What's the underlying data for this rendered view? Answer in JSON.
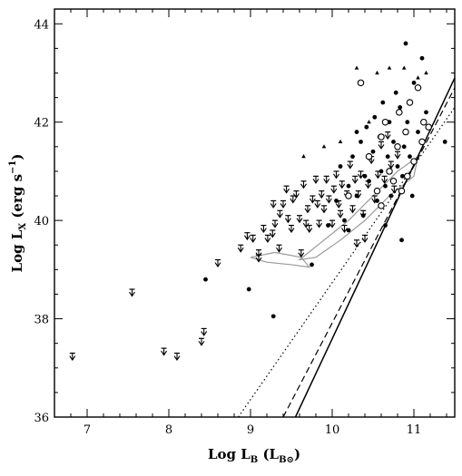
{
  "chart_data": {
    "type": "scatter",
    "title": "",
    "xlabel": {
      "main": "Log L",
      "sub": "B",
      "unit_open": " (L",
      "unit_sub": "B⊙",
      "unit_close": ")"
    },
    "ylabel": {
      "main": "Log L",
      "sub": "X",
      "unit_open": " (erg s",
      "unit_sup": "−1",
      "unit_close": ")"
    },
    "xlim": [
      6.6,
      11.5
    ],
    "ylim": [
      36,
      44.3
    ],
    "x_ticks": [
      7,
      8,
      9,
      10,
      11
    ],
    "x_tick_labels": [
      "7",
      "8",
      "9",
      "10",
      "11"
    ],
    "y_ticks": [
      36,
      38,
      40,
      42,
      44
    ],
    "y_tick_labels": [
      "36",
      "38",
      "40",
      "42",
      "44"
    ],
    "grid": false,
    "legend": "none",
    "colors": {
      "axes": "#000000",
      "points": "#000000",
      "contour": "#9a9a9a"
    },
    "series": [
      {
        "marker": "upper-limit-arrow",
        "points": [
          [
            6.82,
            37.3
          ],
          [
            7.55,
            38.6
          ],
          [
            7.94,
            37.4
          ],
          [
            8.1,
            37.3
          ],
          [
            8.4,
            37.6
          ],
          [
            8.43,
            37.8
          ],
          [
            8.6,
            39.2
          ],
          [
            8.88,
            39.5
          ],
          [
            8.96,
            39.75
          ],
          [
            9.03,
            39.7
          ],
          [
            9.1,
            39.3
          ],
          [
            9.16,
            39.9
          ],
          [
            9.21,
            39.7
          ],
          [
            9.28,
            40.4
          ],
          [
            9.3,
            40.0
          ],
          [
            9.35,
            39.5
          ],
          [
            9.4,
            40.4
          ],
          [
            9.44,
            40.7
          ],
          [
            9.46,
            40.1
          ],
          [
            9.5,
            39.9
          ],
          [
            9.56,
            40.6
          ],
          [
            9.6,
            40.1
          ],
          [
            9.62,
            39.4
          ],
          [
            9.65,
            40.8
          ],
          [
            9.7,
            40.3
          ],
          [
            9.72,
            39.9
          ],
          [
            9.76,
            40.5
          ],
          [
            9.8,
            40.9
          ],
          [
            9.84,
            40.0
          ],
          [
            9.87,
            40.6
          ],
          [
            9.9,
            40.3
          ],
          [
            9.93,
            40.9
          ],
          [
            9.96,
            40.5
          ],
          [
            10.0,
            40.0
          ],
          [
            10.02,
            40.7
          ],
          [
            10.05,
            41.0
          ],
          [
            10.08,
            40.4
          ],
          [
            10.12,
            40.8
          ],
          [
            10.15,
            39.9
          ],
          [
            10.18,
            40.6
          ],
          [
            10.22,
            41.2
          ],
          [
            10.25,
            40.3
          ],
          [
            10.28,
            40.9
          ],
          [
            10.32,
            40.6
          ],
          [
            10.35,
            41.0
          ],
          [
            10.38,
            40.2
          ],
          [
            10.4,
            39.7
          ],
          [
            10.44,
            40.8
          ],
          [
            10.48,
            41.3
          ],
          [
            10.52,
            40.5
          ],
          [
            10.56,
            41.0
          ],
          [
            10.6,
            41.6
          ],
          [
            10.64,
            40.9
          ],
          [
            10.68,
            41.8
          ],
          [
            10.72,
            41.2
          ],
          [
            10.76,
            40.7
          ],
          [
            10.8,
            41.4
          ],
          [
            9.36,
            40.2
          ],
          [
            9.52,
            40.5
          ],
          [
            9.68,
            40.0
          ],
          [
            9.82,
            40.4
          ],
          [
            10.1,
            40.2
          ],
          [
            10.3,
            39.6
          ],
          [
            9.1,
            39.4
          ],
          [
            9.27,
            39.8
          ]
        ]
      },
      {
        "marker": "filled-circle",
        "points": [
          [
            8.45,
            38.8
          ],
          [
            8.98,
            38.6
          ],
          [
            9.28,
            38.05
          ],
          [
            9.75,
            39.1
          ],
          [
            9.95,
            39.9
          ],
          [
            10.05,
            40.4
          ],
          [
            10.1,
            41.1
          ],
          [
            10.15,
            40.0
          ],
          [
            10.2,
            40.7
          ],
          [
            10.25,
            41.3
          ],
          [
            10.3,
            40.5
          ],
          [
            10.35,
            41.6
          ],
          [
            10.38,
            40.1
          ],
          [
            10.42,
            41.9
          ],
          [
            10.45,
            40.8
          ],
          [
            10.5,
            41.4
          ],
          [
            10.52,
            42.1
          ],
          [
            10.55,
            40.4
          ],
          [
            10.58,
            41.7
          ],
          [
            10.6,
            41.0
          ],
          [
            10.62,
            42.4
          ],
          [
            10.65,
            40.7
          ],
          [
            10.68,
            41.3
          ],
          [
            10.7,
            42.0
          ],
          [
            10.72,
            40.5
          ],
          [
            10.75,
            41.6
          ],
          [
            10.78,
            42.6
          ],
          [
            10.8,
            41.1
          ],
          [
            10.83,
            42.3
          ],
          [
            10.86,
            40.9
          ],
          [
            10.88,
            41.5
          ],
          [
            10.9,
            43.6
          ],
          [
            10.92,
            42.0
          ],
          [
            10.95,
            41.3
          ],
          [
            10.98,
            40.5
          ],
          [
            11.0,
            42.8
          ],
          [
            11.05,
            41.8
          ],
          [
            11.1,
            43.3
          ],
          [
            11.15,
            42.2
          ],
          [
            11.38,
            41.6
          ],
          [
            10.4,
            40.9
          ],
          [
            10.3,
            41.8
          ],
          [
            10.2,
            39.8
          ],
          [
            10.65,
            39.9
          ],
          [
            10.85,
            39.6
          ]
        ]
      },
      {
        "marker": "open-circle",
        "points": [
          [
            10.35,
            42.8
          ],
          [
            10.45,
            41.3
          ],
          [
            10.55,
            40.6
          ],
          [
            10.6,
            41.7
          ],
          [
            10.65,
            42.0
          ],
          [
            10.7,
            41.0
          ],
          [
            10.75,
            40.8
          ],
          [
            10.8,
            41.5
          ],
          [
            10.82,
            42.2
          ],
          [
            10.85,
            40.6
          ],
          [
            10.9,
            41.8
          ],
          [
            10.95,
            42.4
          ],
          [
            11.0,
            41.2
          ],
          [
            11.05,
            42.7
          ],
          [
            11.1,
            41.6
          ],
          [
            11.12,
            42.0
          ],
          [
            10.6,
            40.3
          ],
          [
            10.92,
            40.9
          ],
          [
            10.2,
            40.5
          ],
          [
            11.18,
            41.9
          ]
        ]
      },
      {
        "marker": "filled-triangle",
        "points": [
          [
            9.65,
            41.3
          ],
          [
            9.9,
            41.5
          ],
          [
            10.3,
            43.1
          ],
          [
            10.55,
            43.0
          ],
          [
            10.7,
            43.1
          ],
          [
            10.88,
            43.1
          ],
          [
            11.05,
            42.9
          ],
          [
            11.15,
            43.0
          ],
          [
            10.1,
            41.6
          ],
          [
            10.45,
            42.0
          ]
        ]
      }
    ],
    "lines": [
      {
        "style": "solid",
        "x": [
          9.55,
          11.5
        ],
        "y": [
          36.0,
          42.9
        ]
      },
      {
        "style": "dashed",
        "x": [
          9.4,
          11.5
        ],
        "y": [
          36.0,
          42.7
        ]
      },
      {
        "style": "dotted",
        "x": [
          8.85,
          11.5
        ],
        "y": [
          36.0,
          42.3
        ]
      }
    ],
    "contours": [
      {
        "x": [
          9.0,
          9.3,
          9.62,
          9.72,
          9.5,
          9.2,
          9.0
        ],
        "y": [
          39.25,
          39.35,
          39.25,
          39.05,
          39.1,
          39.15,
          39.25
        ]
      },
      {
        "x": [
          9.6,
          9.9,
          10.2,
          10.5,
          10.8,
          11.05,
          11.0,
          10.7,
          10.4,
          10.1,
          9.8,
          9.6
        ],
        "y": [
          39.2,
          39.6,
          40.0,
          40.5,
          41.0,
          41.3,
          40.9,
          40.5,
          40.0,
          39.6,
          39.25,
          39.2
        ]
      }
    ]
  }
}
